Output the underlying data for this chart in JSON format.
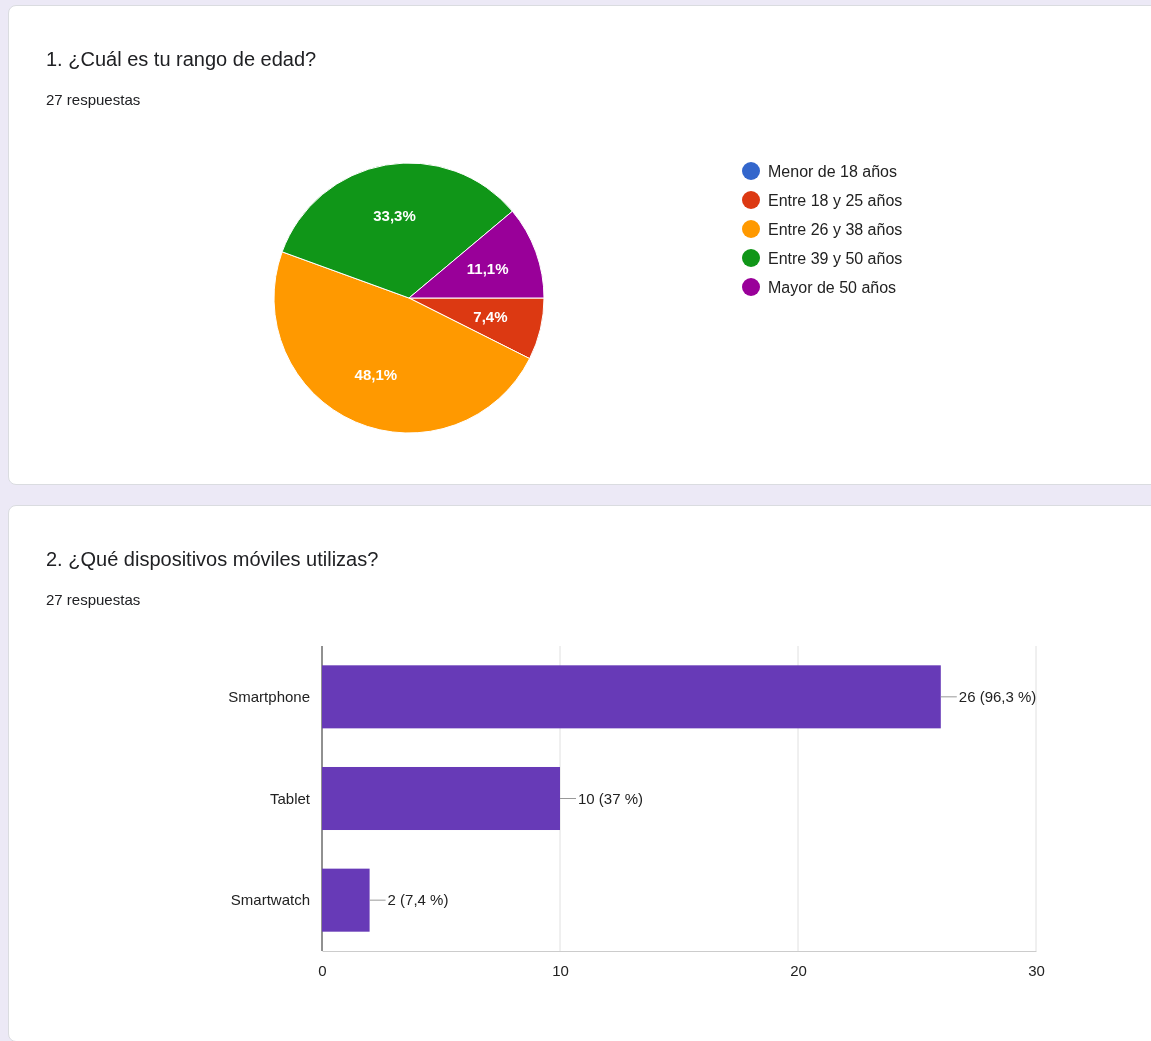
{
  "chart_data": [
    {
      "type": "pie",
      "title": "1. ¿Cuál es tu rango de edad?",
      "subtitle": "27 respuestas",
      "categories": [
        "Menor de 18 años",
        "Entre 18 y 25 años",
        "Entre 26 y 38 años",
        "Entre 39 y 50 años",
        "Mayor de 50 años"
      ],
      "values": [
        0,
        7.4,
        48.1,
        33.3,
        11.1
      ],
      "colors": [
        "#3366cc",
        "#dc3912",
        "#ff9900",
        "#109618",
        "#990099"
      ],
      "value_labels": [
        null,
        "7,4%",
        "48,1%",
        "33,3%",
        "11,1%"
      ],
      "legend": "right"
    },
    {
      "type": "bar",
      "orientation": "horizontal",
      "title": "2. ¿Qué dispositivos móviles utilizas?",
      "subtitle": "27 respuestas",
      "categories": [
        "Smartphone",
        "Tablet",
        "Smartwatch"
      ],
      "values": [
        26,
        10,
        2
      ],
      "color": "#673ab7",
      "value_labels": [
        "26 (96,3 %)",
        "10 (37 %)",
        "2 (7,4 %)"
      ],
      "xlim": [
        0,
        30
      ],
      "xticks": [
        0,
        10,
        20,
        30
      ],
      "grid": "x"
    }
  ]
}
